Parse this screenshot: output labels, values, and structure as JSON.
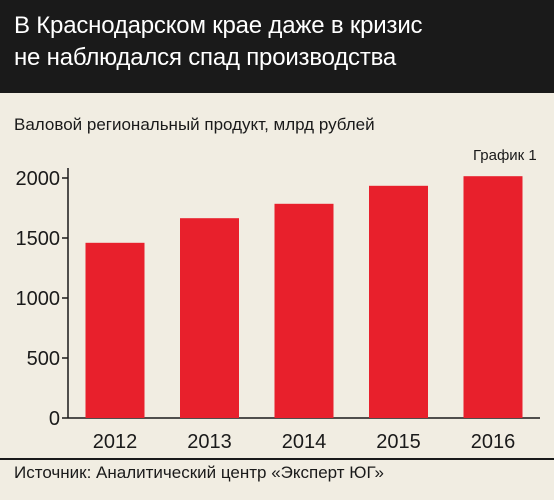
{
  "header": {
    "title_line1": "В Краснодарском крае даже в кризис",
    "title_line2": "не наблюдался спад производства"
  },
  "subtitle": "Валовой региональный продукт, млрд рублей",
  "chart_label": "График 1",
  "source": "Источник: Аналитический центр «Эксперт ЮГ»",
  "colors": {
    "bar": "#e8202c",
    "header_bg": "#1a1a1a",
    "background": "#f1ede2"
  },
  "chart_data": {
    "type": "bar",
    "categories": [
      "2012",
      "2013",
      "2014",
      "2015",
      "2016"
    ],
    "values": [
      1460,
      1665,
      1785,
      1935,
      2015
    ],
    "ylim": [
      0,
      2000
    ],
    "yticks": [
      0,
      500,
      1000,
      1500,
      2000
    ],
    "title": "",
    "xlabel": "",
    "ylabel": "",
    "grid": false
  }
}
